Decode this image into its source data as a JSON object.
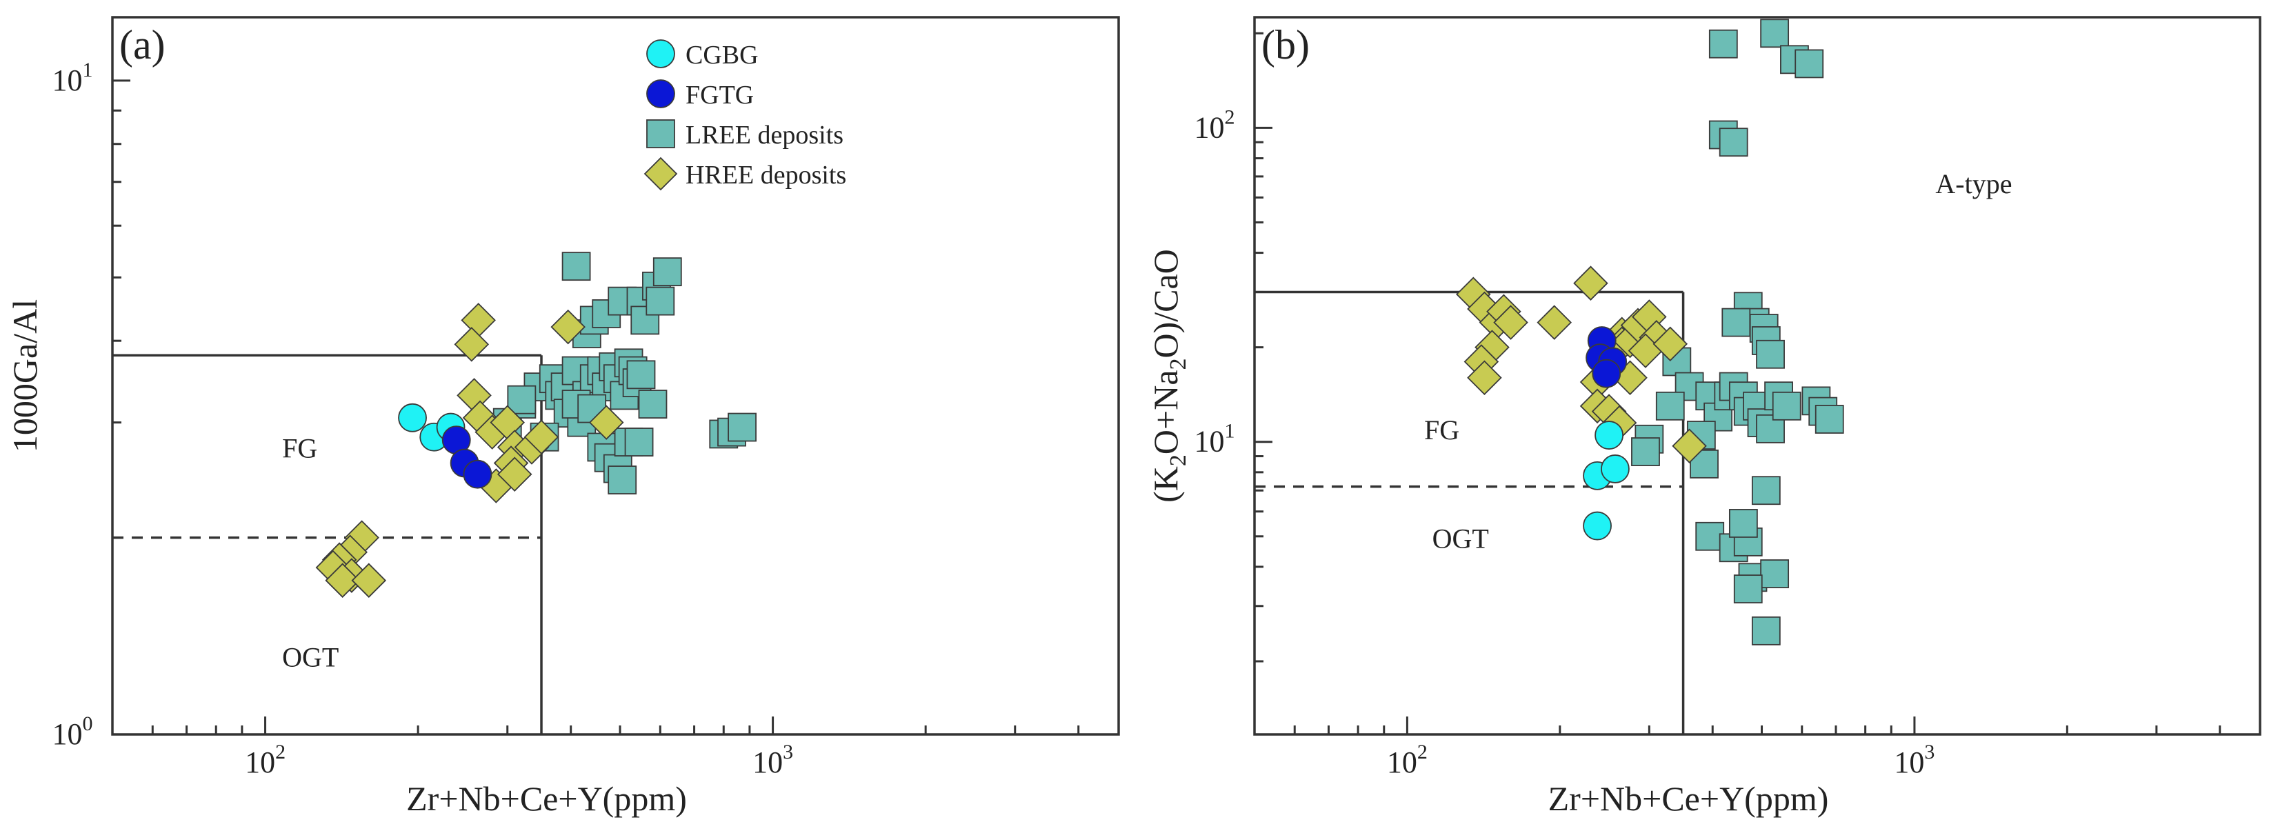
{
  "colors": {
    "CGBG": "#1ff2f5",
    "FGTG": "#0b17d6",
    "LREE": "#6cbdb5",
    "HREE": "#c8cb52",
    "stroke": "#3a3a3a"
  },
  "legend": [
    {
      "series": "CGBG",
      "label": "CGBG",
      "marker": "circle"
    },
    {
      "series": "FGTG",
      "label": "FGTG",
      "marker": "circle"
    },
    {
      "series": "LREE",
      "label": "LREE deposits",
      "marker": "square"
    },
    {
      "series": "HREE",
      "label": "HREE deposits",
      "marker": "diamond"
    }
  ],
  "chart_data": [
    {
      "panel": "(a)",
      "type": "scatter",
      "xlabel": "Zr+Nb+Ce+Y(ppm)",
      "ylabel": "1000Ga/Al",
      "xscale": "log",
      "yscale": "log",
      "xlim": [
        50,
        4800
      ],
      "ylim": [
        1,
        12.5
      ],
      "xticks": [
        {
          "v": 100,
          "base": "10",
          "exp": "2"
        },
        {
          "v": 1000,
          "base": "10",
          "exp": "3"
        }
      ],
      "yticks": [
        {
          "v": 1,
          "base": "10",
          "exp": "0"
        },
        {
          "v": 10,
          "base": "10",
          "exp": "1"
        }
      ],
      "regions": [
        {
          "label": "FG",
          "x": 108,
          "y": 2.65
        },
        {
          "label": "OGT",
          "x": 108,
          "y": 1.27
        }
      ],
      "boundaries": {
        "solid": [
          [
            [
              50,
              3.8
            ],
            [
              350,
              3.8
            ]
          ],
          [
            [
              350,
              3.8
            ],
            [
              350,
              1
            ]
          ]
        ],
        "dashed": [
          [
            [
              50,
              2.0
            ],
            [
              350,
              2.0
            ]
          ]
        ]
      },
      "series": [
        {
          "key": "CGBG",
          "marker": "circle",
          "points": [
            [
              195,
              3.05
            ],
            [
              215,
              2.85
            ],
            [
              232,
              2.95
            ]
          ]
        },
        {
          "key": "FGTG",
          "marker": "circle",
          "points": [
            [
              238,
              2.82
            ],
            [
              247,
              2.6
            ],
            [
              262,
              2.5
            ]
          ]
        },
        {
          "key": "LREE",
          "marker": "square",
          "points": [
            [
              410,
              5.2
            ],
            [
              430,
              4.1
            ],
            [
              445,
              4.3
            ],
            [
              470,
              4.4
            ],
            [
              505,
              4.6
            ],
            [
              550,
              4.6
            ],
            [
              560,
              4.3
            ],
            [
              590,
              4.85
            ],
            [
              600,
              4.6
            ],
            [
              620,
              5.1
            ],
            [
              300,
              3.0
            ],
            [
              320,
              3.2
            ],
            [
              345,
              3.4
            ],
            [
              370,
              3.5
            ],
            [
              380,
              3.3
            ],
            [
              390,
              3.4
            ],
            [
              395,
              3.1
            ],
            [
              410,
              3.6
            ],
            [
              420,
              3.0
            ],
            [
              430,
              3.3
            ],
            [
              445,
              3.5
            ],
            [
              460,
              3.6
            ],
            [
              470,
              3.4
            ],
            [
              485,
              3.65
            ],
            [
              495,
              3.5
            ],
            [
              510,
              3.3
            ],
            [
              520,
              3.7
            ],
            [
              530,
              3.6
            ],
            [
              540,
              3.45
            ],
            [
              550,
              3.55
            ],
            [
              355,
              2.85
            ],
            [
              460,
              2.75
            ],
            [
              475,
              2.65
            ],
            [
              495,
              2.55
            ],
            [
              505,
              2.45
            ],
            [
              520,
              2.8
            ],
            [
              545,
              2.8
            ],
            [
              580,
              3.2
            ],
            [
              800,
              2.88
            ],
            [
              830,
              2.9
            ],
            [
              870,
              2.95
            ],
            [
              320,
              3.25
            ],
            [
              410,
              3.2
            ],
            [
              440,
              3.15
            ]
          ]
        },
        {
          "key": "HREE",
          "marker": "diamond",
          "points": [
            [
              263,
              4.3
            ],
            [
              255,
              3.95
            ],
            [
              258,
              3.3
            ],
            [
              265,
              3.05
            ],
            [
              280,
              2.9
            ],
            [
              300,
              3.0
            ],
            [
              310,
              2.75
            ],
            [
              335,
              2.75
            ],
            [
              285,
              2.4
            ],
            [
              305,
              2.6
            ],
            [
              310,
              2.5
            ],
            [
              350,
              2.85
            ],
            [
              395,
              4.2
            ],
            [
              470,
              3.0
            ],
            [
              155,
              2.0
            ],
            [
              147,
              1.9
            ],
            [
              140,
              1.85
            ],
            [
              136,
              1.8
            ],
            [
              148,
              1.75
            ],
            [
              142,
              1.72
            ],
            [
              160,
              1.72
            ]
          ]
        }
      ]
    },
    {
      "panel": "(b)",
      "type": "scatter",
      "xlabel": "Zr+Nb+Ce+Y(ppm)",
      "ylabel": "(K₂O+Na₂O)/CaO",
      "xscale": "log",
      "yscale": "log",
      "xlim": [
        50,
        4800
      ],
      "ylim": [
        1.17,
        225
      ],
      "xticks": [
        {
          "v": 100,
          "base": "10",
          "exp": "2"
        },
        {
          "v": 1000,
          "base": "10",
          "exp": "3"
        }
      ],
      "yticks": [
        {
          "v": 10,
          "base": "10",
          "exp": "1"
        },
        {
          "v": 100,
          "base": "10",
          "exp": "2"
        }
      ],
      "regions": [
        {
          "label": "FG",
          "x": 108,
          "y": 10.2
        },
        {
          "label": "OGT",
          "x": 112,
          "y": 4.6
        },
        {
          "label": "A-type",
          "x": 1100,
          "y": 62
        }
      ],
      "boundaries": {
        "solid": [
          [
            [
              50,
              30
            ],
            [
              350,
              30
            ]
          ],
          [
            [
              350,
              30
            ],
            [
              350,
              1.17
            ]
          ]
        ],
        "dashed": [
          [
            [
              50,
              7.2
            ],
            [
              350,
              7.2
            ]
          ]
        ]
      },
      "series": [
        {
          "key": "CGBG",
          "marker": "circle",
          "points": [
            [
              250,
              10.5
            ],
            [
              237,
              7.8
            ],
            [
              257,
              8.2
            ],
            [
              237,
              5.4
            ]
          ]
        },
        {
          "key": "FGTG",
          "marker": "circle",
          "points": [
            [
              242,
              21
            ],
            [
              240,
              18.5
            ],
            [
              254,
              18
            ],
            [
              247,
              16.5
            ]
          ]
        },
        {
          "key": "LREE",
          "marker": "square",
          "points": [
            [
              420,
              185
            ],
            [
              420,
              95
            ],
            [
              440,
              90
            ],
            [
              530,
              200
            ],
            [
              580,
              165
            ],
            [
              620,
              160
            ],
            [
              470,
              27
            ],
            [
              485,
              24
            ],
            [
              505,
              23
            ],
            [
              510,
              21
            ],
            [
              520,
              19
            ],
            [
              445,
              24
            ],
            [
              340,
              18
            ],
            [
              360,
              15
            ],
            [
              330,
              13
            ],
            [
              395,
              14
            ],
            [
              410,
              12
            ],
            [
              430,
              14
            ],
            [
              440,
              15
            ],
            [
              460,
              14
            ],
            [
              470,
              12.5
            ],
            [
              490,
              13
            ],
            [
              500,
              11.5
            ],
            [
              520,
              11
            ],
            [
              540,
              14
            ],
            [
              560,
              13
            ],
            [
              640,
              13.5
            ],
            [
              660,
              12.5
            ],
            [
              680,
              11.8
            ],
            [
              300,
              10.2
            ],
            [
              295,
              9.3
            ],
            [
              385,
              8.5
            ],
            [
              380,
              10.5
            ],
            [
              395,
              5.0
            ],
            [
              440,
              4.6
            ],
            [
              470,
              4.8
            ],
            [
              460,
              5.5
            ],
            [
              510,
              7.0
            ],
            [
              480,
              3.7
            ],
            [
              530,
              3.8
            ],
            [
              470,
              3.4
            ],
            [
              510,
              2.5
            ]
          ]
        },
        {
          "key": "HREE",
          "marker": "diamond",
          "points": [
            [
              135,
              29.5
            ],
            [
              142,
              26.5
            ],
            [
              150,
              24
            ],
            [
              155,
              26
            ],
            [
              160,
              24
            ],
            [
              147,
              20
            ],
            [
              140,
              18
            ],
            [
              142,
              16
            ],
            [
              195,
              24
            ],
            [
              230,
              32
            ],
            [
              265,
              22
            ],
            [
              265,
              20.5
            ],
            [
              275,
              21
            ],
            [
              285,
              23.5
            ],
            [
              300,
              25
            ],
            [
              310,
              21.5
            ],
            [
              295,
              19.5
            ],
            [
              275,
              16
            ],
            [
              237,
              15.5
            ],
            [
              237,
              13
            ],
            [
              250,
              12.5
            ],
            [
              262,
              11.5
            ],
            [
              330,
              20.5
            ],
            [
              360,
              9.7
            ]
          ]
        }
      ]
    }
  ]
}
